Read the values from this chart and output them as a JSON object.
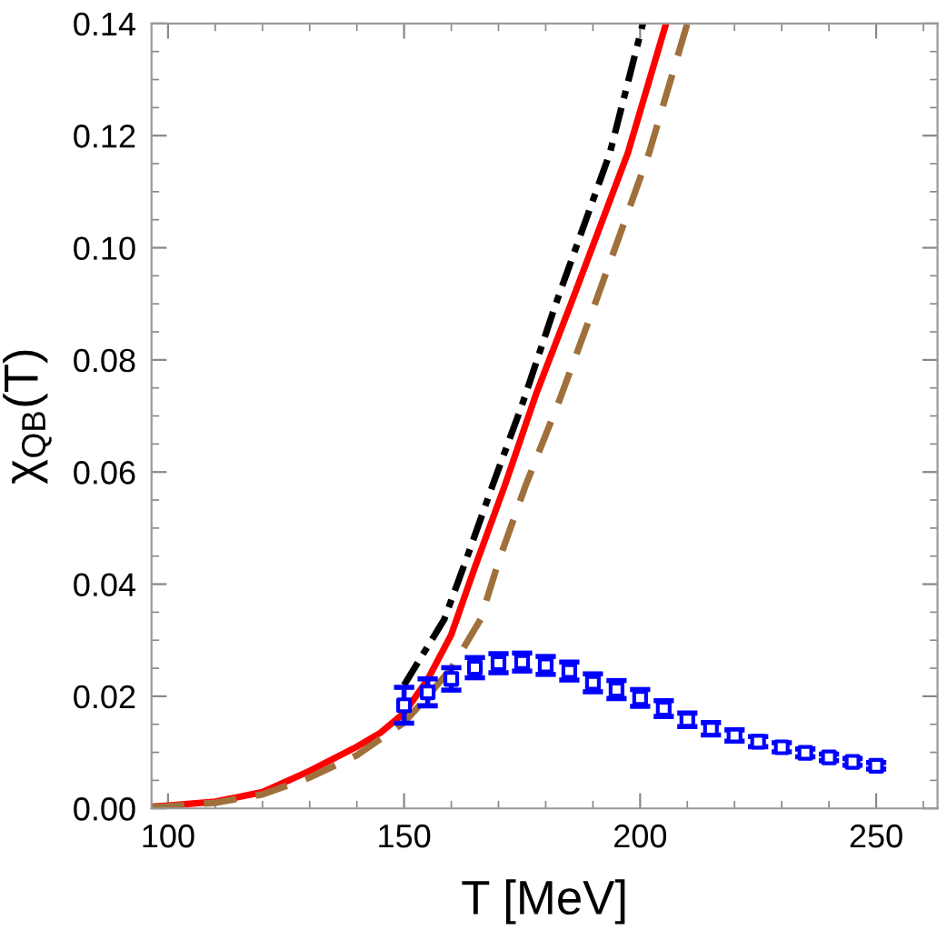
{
  "chart_data": {
    "type": "line",
    "xlabel": "T [MeV]",
    "ylabel": "χ$_{QB}$(T)",
    "xlim": [
      96.5,
      263
    ],
    "xticks": [
      100,
      150,
      200,
      250
    ],
    "ylim": [
      0,
      0.14
    ],
    "yticks": [
      {
        "value": 0,
        "label": "0.00"
      },
      {
        "value": 0.02,
        "label": "0.02"
      },
      {
        "value": 0.04,
        "label": "0.04"
      },
      {
        "value": 0.06,
        "label": "0.06"
      },
      {
        "value": 0.08,
        "label": "0.08"
      },
      {
        "value": 0.1,
        "label": "0.10"
      },
      {
        "value": 0.12,
        "label": "0.12"
      },
      {
        "value": 0.14,
        "label": "0.14"
      }
    ],
    "grid": false,
    "legend": false,
    "series": [
      {
        "color": "#000000",
        "line_style": "dashdot",
        "x": [
          150,
          158.5,
          163,
          168.7,
          175,
          182.1,
          193.6,
          200.6
        ],
        "values": [
          0.022,
          0.0337,
          0.044,
          0.0575,
          0.072,
          0.0899,
          0.1169,
          0.14
        ]
      },
      {
        "color": "#ff0000",
        "line_style": "solid",
        "x": [
          96.5,
          100,
          110,
          120,
          130,
          140,
          145,
          150,
          155,
          160,
          165,
          171.3,
          178,
          185.3,
          197.4,
          205.5
        ],
        "values": [
          0.0003,
          0.0005,
          0.0012,
          0.0029,
          0.0067,
          0.011,
          0.0135,
          0.017,
          0.023,
          0.031,
          0.043,
          0.0575,
          0.074,
          0.0899,
          0.1169,
          0.14
        ]
      },
      {
        "color": "#a0703c",
        "line_style": "dashed",
        "x": [
          96.5,
          100,
          110,
          120,
          130,
          140,
          150,
          155,
          160,
          166.2,
          170,
          175.7,
          183,
          190.4,
          196,
          201.9,
          210
        ],
        "values": [
          0.0002,
          0.0004,
          0.001,
          0.0025,
          0.0055,
          0.0095,
          0.0153,
          0.02,
          0.025,
          0.0337,
          0.044,
          0.0575,
          0.073,
          0.0899,
          0.103,
          0.1169,
          0.14
        ]
      },
      {
        "type": "scatter",
        "color": "#0000ff",
        "marker": "square",
        "x": [
          150,
          155,
          160,
          165,
          170,
          175,
          180,
          185,
          190,
          195,
          200,
          205,
          210,
          215,
          220,
          225,
          230,
          235,
          240,
          245,
          250
        ],
        "values": [
          0.0184,
          0.0207,
          0.0231,
          0.0251,
          0.0259,
          0.0261,
          0.0255,
          0.0245,
          0.0224,
          0.0212,
          0.0197,
          0.0178,
          0.0158,
          0.0142,
          0.013,
          0.0119,
          0.0109,
          0.0099,
          0.0091,
          0.0083,
          0.0076
        ],
        "errors": [
          0.0032,
          0.0024,
          0.002,
          0.0018,
          0.0017,
          0.0016,
          0.0016,
          0.0016,
          0.0016,
          0.0016,
          0.0015,
          0.0014,
          0.0012,
          0.0011,
          0.001,
          0.0009,
          0.0008,
          0.0007,
          0.0006,
          0.0006,
          0.0006
        ]
      }
    ]
  }
}
